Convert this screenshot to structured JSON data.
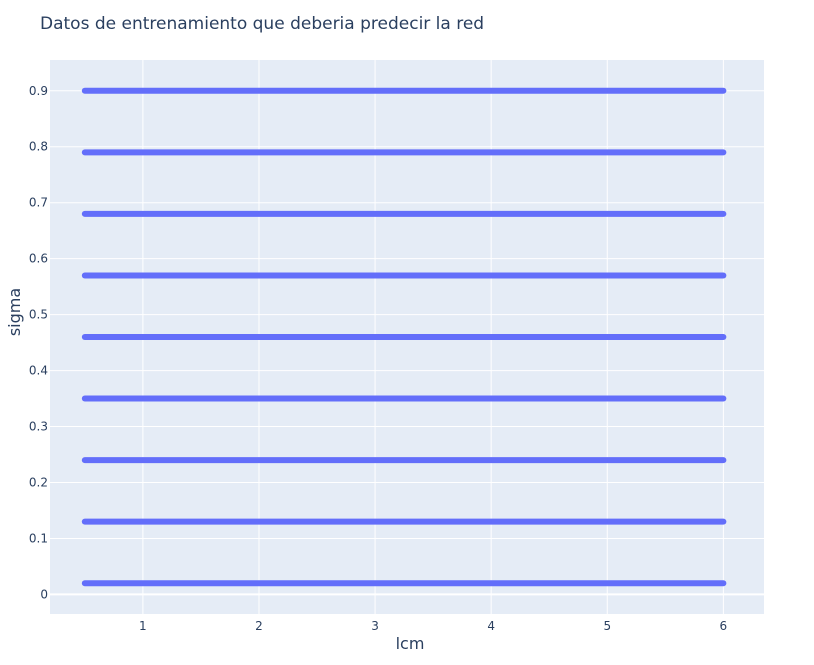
{
  "chart_data": {
    "type": "scatter",
    "title": "Datos de entrenamiento que deberia predecir la red",
    "xlabel": "lcm",
    "ylabel": "sigma",
    "xlim": [
      0.2,
      6.35
    ],
    "ylim": [
      -0.035,
      0.955
    ],
    "x_ticks": [
      1,
      2,
      3,
      4,
      5,
      6
    ],
    "y_ticks": [
      0,
      0.1,
      0.2,
      0.3,
      0.4,
      0.5,
      0.6,
      0.7,
      0.8,
      0.9
    ],
    "x_tick_labels": [
      "1",
      "2",
      "3",
      "4",
      "5",
      "6"
    ],
    "y_tick_labels": [
      "0",
      "0.1",
      "0.2",
      "0.3",
      "0.4",
      "0.5",
      "0.6",
      "0.7",
      "0.8",
      "0.9"
    ],
    "grid": true,
    "legend": false,
    "marker_color": "#636efa",
    "background_color": "#e5ecf6",
    "grid_color": "#ffffff",
    "series": [
      {
        "x_range": [
          0.5,
          6.0
        ],
        "sigma_levels": [
          0.02,
          0.13,
          0.24,
          0.35,
          0.46,
          0.57,
          0.68,
          0.79,
          0.9
        ]
      }
    ]
  }
}
